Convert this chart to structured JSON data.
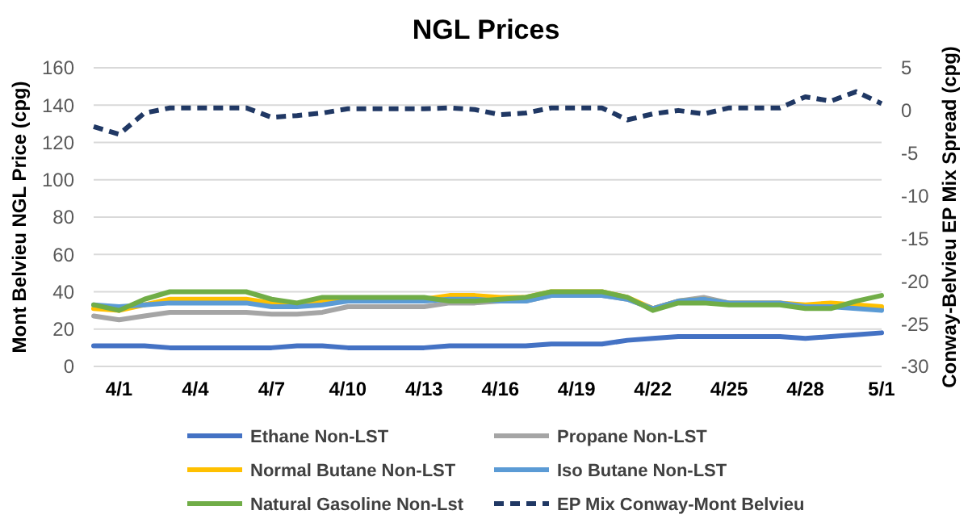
{
  "chart_data": {
    "type": "line",
    "title": "NGL Prices",
    "ylabel": "Mont Belvieu NGL Price (cpg)",
    "y2label": "Conway-Belvieu EP Mix Spread (cpg)",
    "categories": [
      null,
      "4/1",
      null,
      null,
      "4/4",
      null,
      null,
      "4/7",
      null,
      null,
      "4/10",
      null,
      null,
      "4/13",
      null,
      null,
      "4/16",
      null,
      null,
      "4/19",
      null,
      null,
      "4/22",
      null,
      null,
      "4/25",
      null,
      null,
      "4/28",
      null,
      null,
      "5/1"
    ],
    "ylim": [
      0,
      160
    ],
    "yticks": [
      0,
      20,
      40,
      60,
      80,
      100,
      120,
      140,
      160
    ],
    "y2lim": [
      -30,
      5
    ],
    "y2ticks": [
      -30,
      -25,
      -20,
      -15,
      -10,
      -5,
      0,
      5
    ],
    "grid": "y",
    "legend": "bottom",
    "line_style": "solid",
    "marker": "none",
    "series": [
      {
        "name": "Ethane Non-LST",
        "color": "#4472c4",
        "values": [
          11,
          11,
          11,
          10,
          10,
          10,
          10,
          10,
          11,
          11,
          10,
          10,
          10,
          10,
          11,
          11,
          11,
          11,
          12,
          12,
          12,
          14,
          15,
          16,
          16,
          16,
          16,
          16,
          15,
          16,
          17,
          18
        ]
      },
      {
        "name": "Propane Non-LST",
        "color": "#a5a5a5",
        "values": [
          27,
          25,
          27,
          29,
          29,
          29,
          29,
          28,
          28,
          29,
          32,
          32,
          32,
          32,
          34,
          34,
          35,
          35,
          38,
          null,
          38,
          36,
          31,
          35,
          37,
          34,
          34,
          34,
          32,
          32,
          32,
          31
        ]
      },
      {
        "name": "Normal Butane Non-LST",
        "color": "#ffc000",
        "values": [
          31,
          30,
          33,
          36,
          36,
          36,
          36,
          34,
          33,
          35,
          36,
          null,
          null,
          36,
          38,
          38,
          37,
          37,
          40,
          40,
          40,
          37,
          31,
          35,
          36,
          34,
          34,
          34,
          33,
          34,
          33,
          32
        ]
      },
      {
        "name": "Iso Butane Non-LST",
        "color": "#5b9bd5",
        "values": [
          33,
          32,
          33,
          34,
          34,
          34,
          34,
          32,
          32,
          33,
          35,
          35,
          35,
          35,
          36,
          36,
          35,
          35,
          38,
          38,
          38,
          36,
          31,
          35,
          36,
          34,
          34,
          34,
          32,
          32,
          31,
          30
        ]
      },
      {
        "name": "Natural Gasoline Non-Lst",
        "color": "#70ad47",
        "values": [
          33,
          30,
          36,
          40,
          40,
          40,
          40,
          36,
          34,
          37,
          37,
          37,
          37,
          37,
          35,
          35,
          36,
          37,
          40,
          40,
          40,
          37,
          30,
          34,
          34,
          33,
          33,
          33,
          31,
          31,
          35,
          38
        ]
      },
      {
        "name": "EP Mix Conway-Mont Belvieu",
        "color": "#203864",
        "axis": "y2",
        "line_style": "dashed",
        "values": [
          -1.9,
          -2.8,
          -0.3,
          0.3,
          0.3,
          0.3,
          0.3,
          -0.8,
          -0.6,
          -0.3,
          0.2,
          0.2,
          0.2,
          0.2,
          0.3,
          0.1,
          -0.5,
          -0.3,
          0.3,
          0.3,
          0.3,
          -1.1,
          -0.4,
          0,
          -0.4,
          0.3,
          0.3,
          0.3,
          1.6,
          1.1,
          2.2,
          0.8
        ]
      }
    ]
  }
}
